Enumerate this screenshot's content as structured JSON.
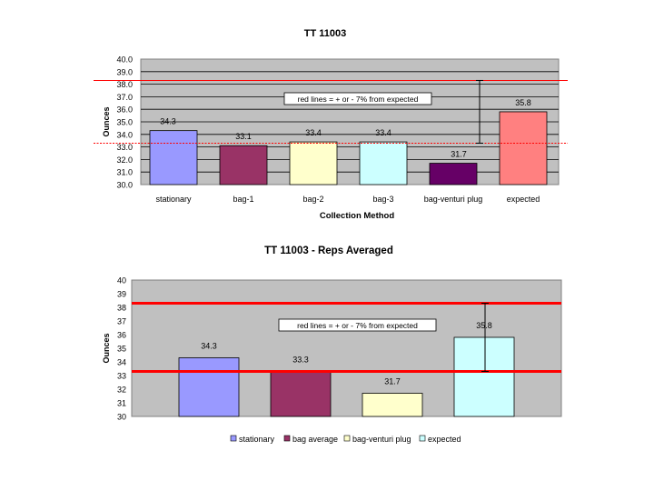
{
  "chart_data": [
    {
      "type": "bar",
      "title": "TT 11003",
      "xlabel": "Collection Method",
      "ylabel": "Ounces",
      "ylim": [
        30,
        40
      ],
      "y_ticks": [
        "30.0",
        "31.0",
        "32.0",
        "33.0",
        "34.0",
        "35.0",
        "36.0",
        "37.0",
        "38.0",
        "39.0",
        "40.0"
      ],
      "categories": [
        "stationary",
        "bag-1",
        "bag-2",
        "bag-3",
        "bag-venturi plug",
        "expected"
      ],
      "values": [
        34.3,
        33.1,
        33.4,
        33.4,
        31.7,
        35.8
      ],
      "value_labels": [
        "34.3",
        "33.1",
        "33.4",
        "33.4",
        "31.7",
        "35.8"
      ],
      "bar_colors": [
        "#9999ff",
        "#993366",
        "#ffffcc",
        "#ccffff",
        "#660066",
        "#ff8080"
      ],
      "plot_background": "#c0c0c0",
      "grid": true,
      "legend": "none",
      "reference_lines": [
        {
          "y": 38.3,
          "color": "#ff0000",
          "style": "solid"
        },
        {
          "y": 33.3,
          "color": "#ff0000",
          "style": "dotted"
        }
      ],
      "error_bar": {
        "category": "expected",
        "low": 33.3,
        "high": 38.3
      },
      "annotation": "red lines = + or - 7% from expected"
    },
    {
      "type": "bar",
      "title": "TT 11003 - Reps Averaged",
      "xlabel": "",
      "ylabel": "Ounces",
      "ylim": [
        30,
        40
      ],
      "y_ticks": [
        "30",
        "31",
        "32",
        "33",
        "34",
        "35",
        "36",
        "37",
        "38",
        "39",
        "40"
      ],
      "categories": [
        "stationary",
        "bag average",
        "bag-venturi plug",
        "expected"
      ],
      "values": [
        34.3,
        33.3,
        31.7,
        35.8
      ],
      "value_labels": [
        "34.3",
        "33.3",
        "31.7",
        "35.8"
      ],
      "bar_colors": [
        "#9999ff",
        "#993366",
        "#ffffcc",
        "#ccffff"
      ],
      "plot_background": "#c0c0c0",
      "grid": false,
      "legend": "bottom",
      "reference_lines": [
        {
          "y": 38.3,
          "color": "#ff0000",
          "style": "solid"
        },
        {
          "y": 33.3,
          "color": "#ff0000",
          "style": "solid"
        }
      ],
      "error_bar": {
        "category": "expected",
        "low": 33.3,
        "high": 38.3
      },
      "annotation": "red lines = + or - 7% from expected"
    }
  ]
}
